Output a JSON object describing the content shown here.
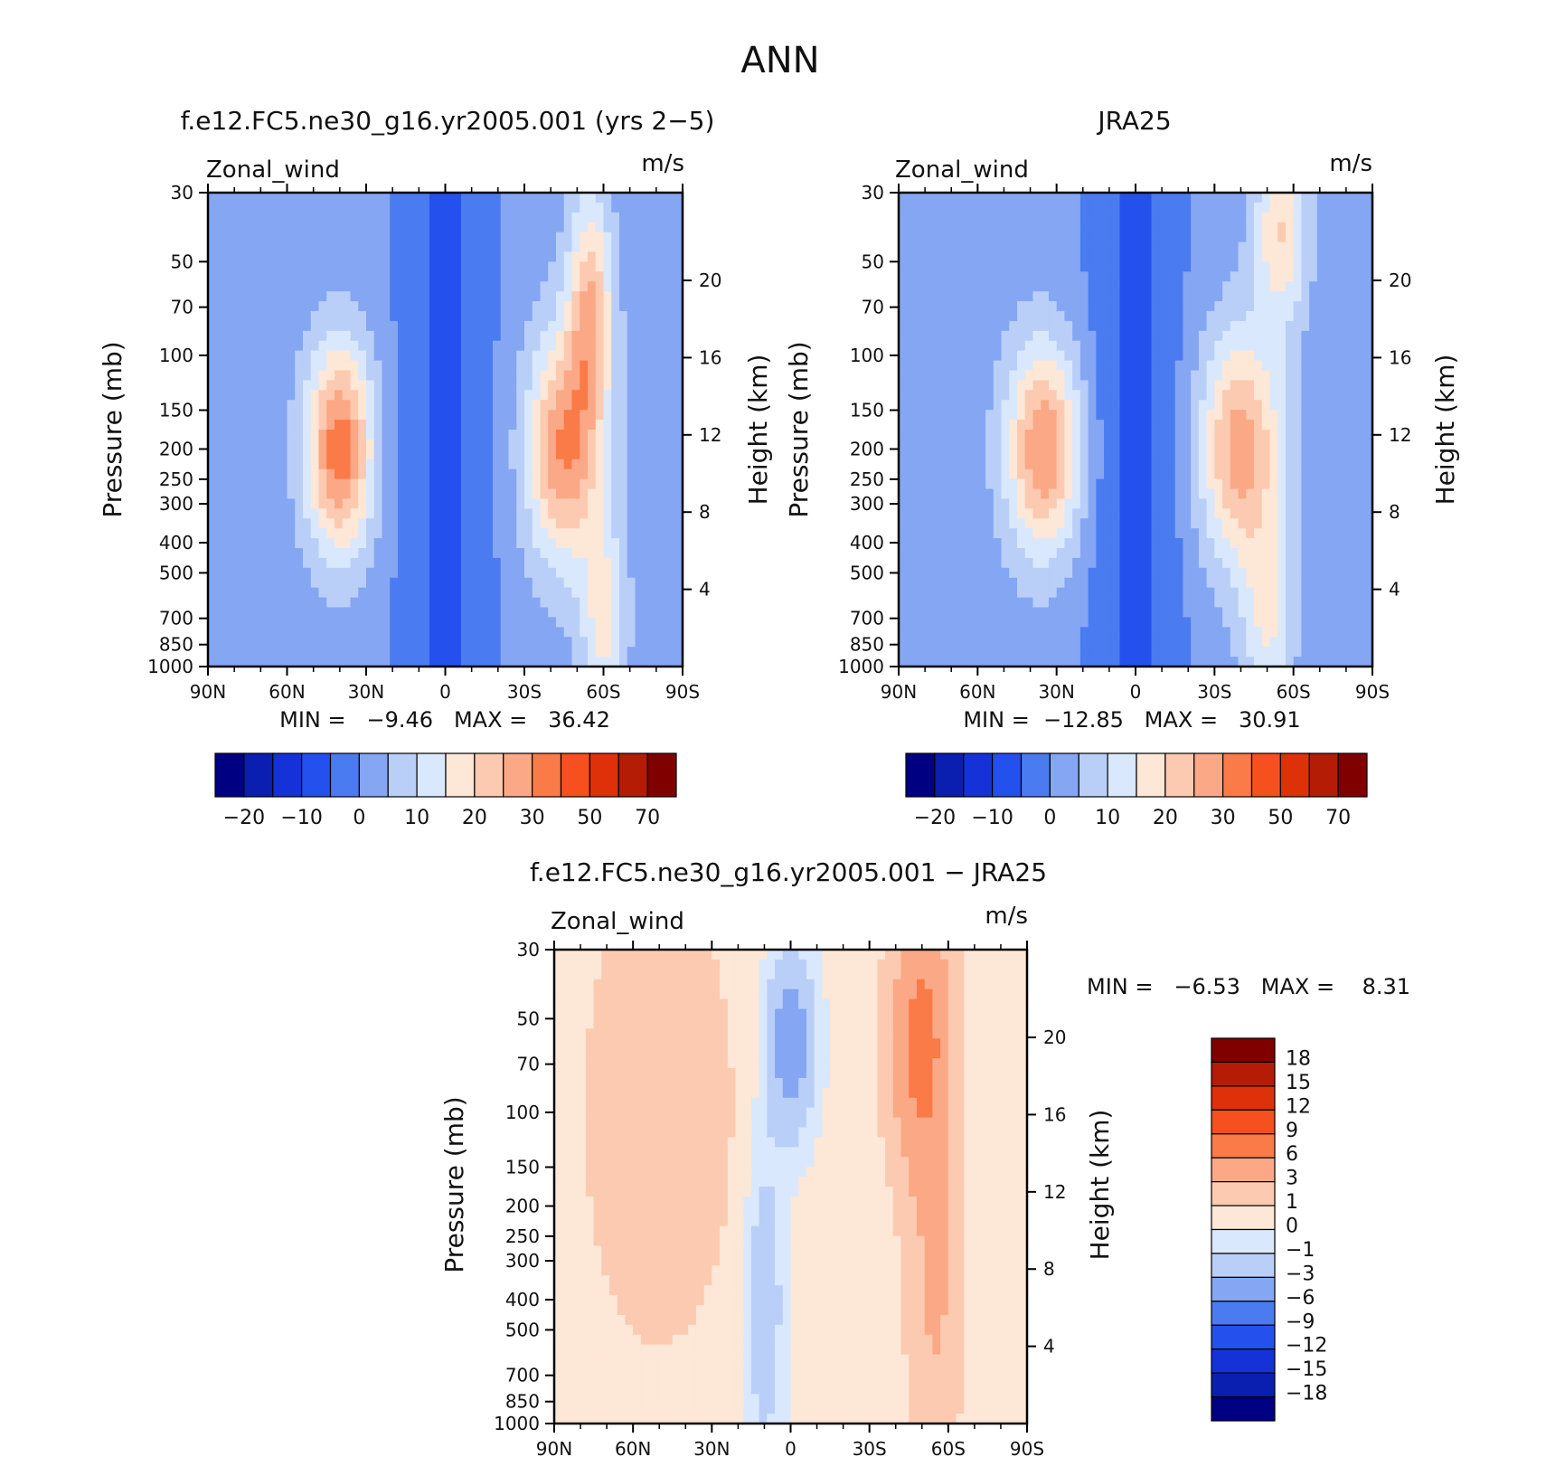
{
  "figure": {
    "title": "ANN"
  },
  "chart_data": [
    {
      "type": "heatmap",
      "id": "model",
      "title": "f.e12.FC5.ne30_g16.yr2005.001 (yrs 2−5)",
      "left_label": "Zonal_wind",
      "units": "m/s",
      "ylabel": "Pressure (mb)",
      "ylabel_right": "Height (km)",
      "x_ticks": [
        "90N",
        "60N",
        "30N",
        "0",
        "30S",
        "60S",
        "90S"
      ],
      "x_range": [
        90,
        -90
      ],
      "y_ticks": [
        30,
        50,
        70,
        100,
        150,
        200,
        250,
        300,
        400,
        500,
        700,
        850,
        1000
      ],
      "y_range": [
        30,
        1000
      ],
      "y_scale": "log",
      "height_ticks": [
        4,
        8,
        12,
        16,
        20
      ],
      "stats_text": "MIN =   −9.46   MAX =   36.42",
      "min": -9.46,
      "max": 36.42,
      "features": [
        {
          "lat": 40,
          "p": 200,
          "amp": 31,
          "wlat": 9,
          "wlog": 0.55
        },
        {
          "lat": -45,
          "p": 200,
          "amp": 28,
          "wlat": 10,
          "wlog": 0.6
        },
        {
          "lat": -55,
          "p": 70,
          "amp": 22,
          "wlat": 6,
          "wlog": 0.6
        },
        {
          "lat": -60,
          "p": 700,
          "amp": 15,
          "wlat": 6,
          "wlog": 0.5
        }
      ],
      "colorbar": {
        "labels": [
          "−20",
          "−10",
          "0",
          "10",
          "20",
          "30",
          "50",
          "70"
        ],
        "colors": [
          "#000082",
          "#0a1eaf",
          "#1432d7",
          "#2450ee",
          "#4a7bf0",
          "#85a6f3",
          "#b9cff8",
          "#d9e8fc",
          "#fde7d6",
          "#fccab0",
          "#fba886",
          "#fa7a48",
          "#f6501f",
          "#de3109",
          "#b51c05",
          "#800000"
        ]
      }
    },
    {
      "type": "heatmap",
      "id": "obs",
      "title": "JRA25",
      "left_label": "Zonal_wind",
      "units": "m/s",
      "ylabel": "Pressure (mb)",
      "ylabel_right": "Height (km)",
      "x_ticks": [
        "90N",
        "60N",
        "30N",
        "0",
        "30S",
        "60S",
        "90S"
      ],
      "x_range": [
        90,
        -90
      ],
      "y_ticks": [
        30,
        50,
        70,
        100,
        150,
        200,
        250,
        300,
        400,
        500,
        700,
        850,
        1000
      ],
      "y_range": [
        30,
        1000
      ],
      "y_scale": "log",
      "height_ticks": [
        4,
        8,
        12,
        16,
        20
      ],
      "stats_text": "MIN =  −12.85   MAX =   30.91",
      "min": -12.85,
      "max": 30.91,
      "features": [
        {
          "lat": 35,
          "p": 200,
          "amp": 28,
          "wlat": 10,
          "wlog": 0.55
        },
        {
          "lat": -40,
          "p": 200,
          "amp": 26,
          "wlat": 11,
          "wlog": 0.6
        },
        {
          "lat": -55,
          "p": 40,
          "amp": 18,
          "wlat": 7,
          "wlog": 0.5
        },
        {
          "lat": -50,
          "p": 700,
          "amp": 13,
          "wlat": 7,
          "wlog": 0.5
        }
      ],
      "colorbar": {
        "labels": [
          "−20",
          "−10",
          "0",
          "10",
          "20",
          "30",
          "50",
          "70"
        ],
        "colors": [
          "#000082",
          "#0a1eaf",
          "#1432d7",
          "#2450ee",
          "#4a7bf0",
          "#85a6f3",
          "#b9cff8",
          "#d9e8fc",
          "#fde7d6",
          "#fccab0",
          "#fba886",
          "#fa7a48",
          "#f6501f",
          "#de3109",
          "#b51c05",
          "#800000"
        ]
      }
    },
    {
      "type": "heatmap",
      "id": "diff",
      "title": "f.e12.FC5.ne30_g16.yr2005.001 − JRA25",
      "left_label": "Zonal_wind",
      "units": "m/s",
      "ylabel": "Pressure (mb)",
      "ylabel_right": "Height (km)",
      "x_ticks": [
        "90N",
        "60N",
        "30N",
        "0",
        "30S",
        "60S",
        "90S"
      ],
      "x_range": [
        90,
        -90
      ],
      "y_ticks": [
        30,
        50,
        70,
        100,
        150,
        200,
        250,
        300,
        400,
        500,
        700,
        850,
        1000
      ],
      "y_range": [
        30,
        1000
      ],
      "y_scale": "log",
      "height_ticks": [
        4,
        8,
        12,
        16,
        20
      ],
      "stats_text": "MIN =   −6.53   MAX =    8.31",
      "min": -6.53,
      "max": 8.31,
      "features": [
        {
          "lat": 50,
          "p": 100,
          "amp": 2.4,
          "wlat": 18,
          "wlog": 1.1
        },
        {
          "lat": -50,
          "p": 60,
          "amp": 7,
          "wlat": 8,
          "wlog": 0.7
        },
        {
          "lat": -55,
          "p": 400,
          "amp": 3,
          "wlat": 7,
          "wlog": 0.8
        },
        {
          "lat": 0,
          "p": 60,
          "amp": -5,
          "wlat": 6,
          "wlog": 0.45
        },
        {
          "lat": 10,
          "p": 400,
          "amp": -2.5,
          "wlat": 5,
          "wlog": 0.8
        }
      ],
      "colorbar": {
        "labels": [
          "18",
          "15",
          "12",
          "9",
          "6",
          "3",
          "1",
          "0",
          "−1",
          "−3",
          "−6",
          "−9",
          "−12",
          "−15",
          "−18"
        ],
        "colors": [
          "#800000",
          "#b51c05",
          "#de3109",
          "#f6501f",
          "#fa7a48",
          "#fba886",
          "#fccab0",
          "#fde7d6",
          "#d9e8fc",
          "#b9cff8",
          "#85a6f3",
          "#4a7bf0",
          "#2450ee",
          "#1432d7",
          "#0a1eaf",
          "#000082"
        ]
      }
    }
  ]
}
